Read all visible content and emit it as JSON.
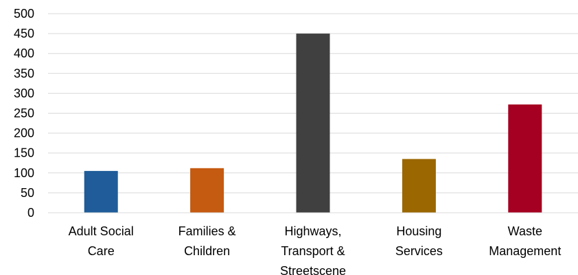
{
  "chart_data": {
    "type": "bar",
    "categories": [
      [
        "Adult Social",
        "Care"
      ],
      [
        "Families &",
        "Children"
      ],
      [
        "Highways,",
        "Transport &",
        "Streetscene"
      ],
      [
        "Housing",
        "Services"
      ],
      [
        "Waste",
        "Management"
      ]
    ],
    "values": [
      105,
      112,
      450,
      135,
      272
    ],
    "colors": [
      "#1f5c99",
      "#c55a11",
      "#404040",
      "#9a6700",
      "#a50021"
    ],
    "ylim": [
      0,
      500
    ],
    "yticks": [
      0,
      50,
      100,
      150,
      200,
      250,
      300,
      350,
      400,
      450,
      500
    ],
    "grid": true,
    "title": "",
    "xlabel": "",
    "ylabel": ""
  }
}
